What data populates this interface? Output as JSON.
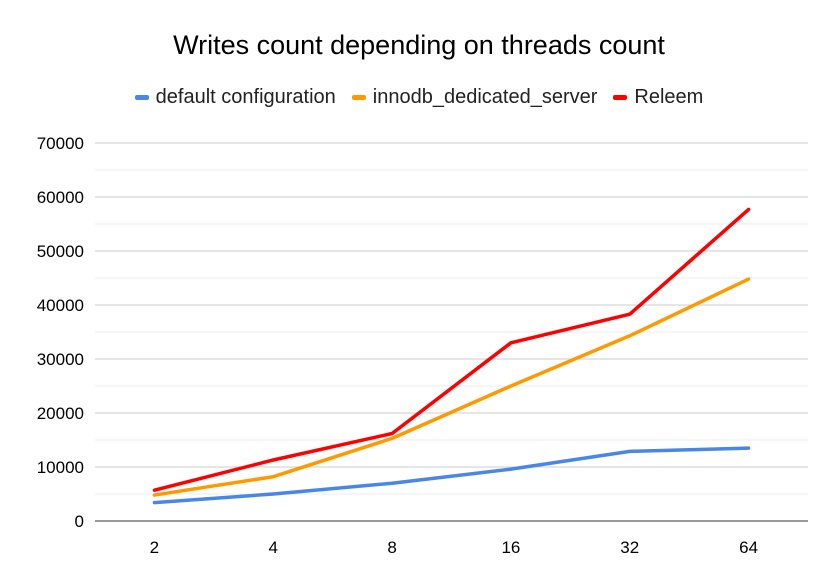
{
  "chart_data": {
    "type": "line",
    "title": "Writes count depending on threads count",
    "xlabel": "",
    "ylabel": "",
    "categories": [
      "2",
      "4",
      "8",
      "16",
      "32",
      "64"
    ],
    "ylim": [
      0,
      70000
    ],
    "yticks": [
      0,
      10000,
      20000,
      30000,
      40000,
      50000,
      60000,
      70000
    ],
    "grid": true,
    "legend_position": "top",
    "series": [
      {
        "name": "default configuration",
        "color": "#4a86e8",
        "values": [
          3400,
          5000,
          7000,
          9600,
          12900,
          13500
        ]
      },
      {
        "name": "innodb_dedicated_server",
        "color": "#ff9900",
        "values": [
          4800,
          8200,
          15300,
          25000,
          34300,
          44800
        ]
      },
      {
        "name": "Releem",
        "color": "#ff0000",
        "values": [
          5700,
          11300,
          16200,
          33000,
          38300,
          57700
        ]
      }
    ]
  }
}
